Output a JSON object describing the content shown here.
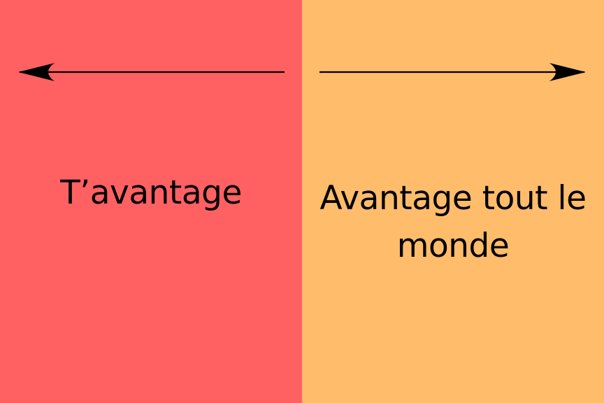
{
  "colors": {
    "left_panel": "#FF6163",
    "right_panel": "#FFBC6B",
    "ink": "#000000"
  },
  "left": {
    "label": "T’avantage",
    "arrow_direction": "left"
  },
  "right": {
    "label": "Avantage tout le monde",
    "arrow_direction": "right"
  }
}
